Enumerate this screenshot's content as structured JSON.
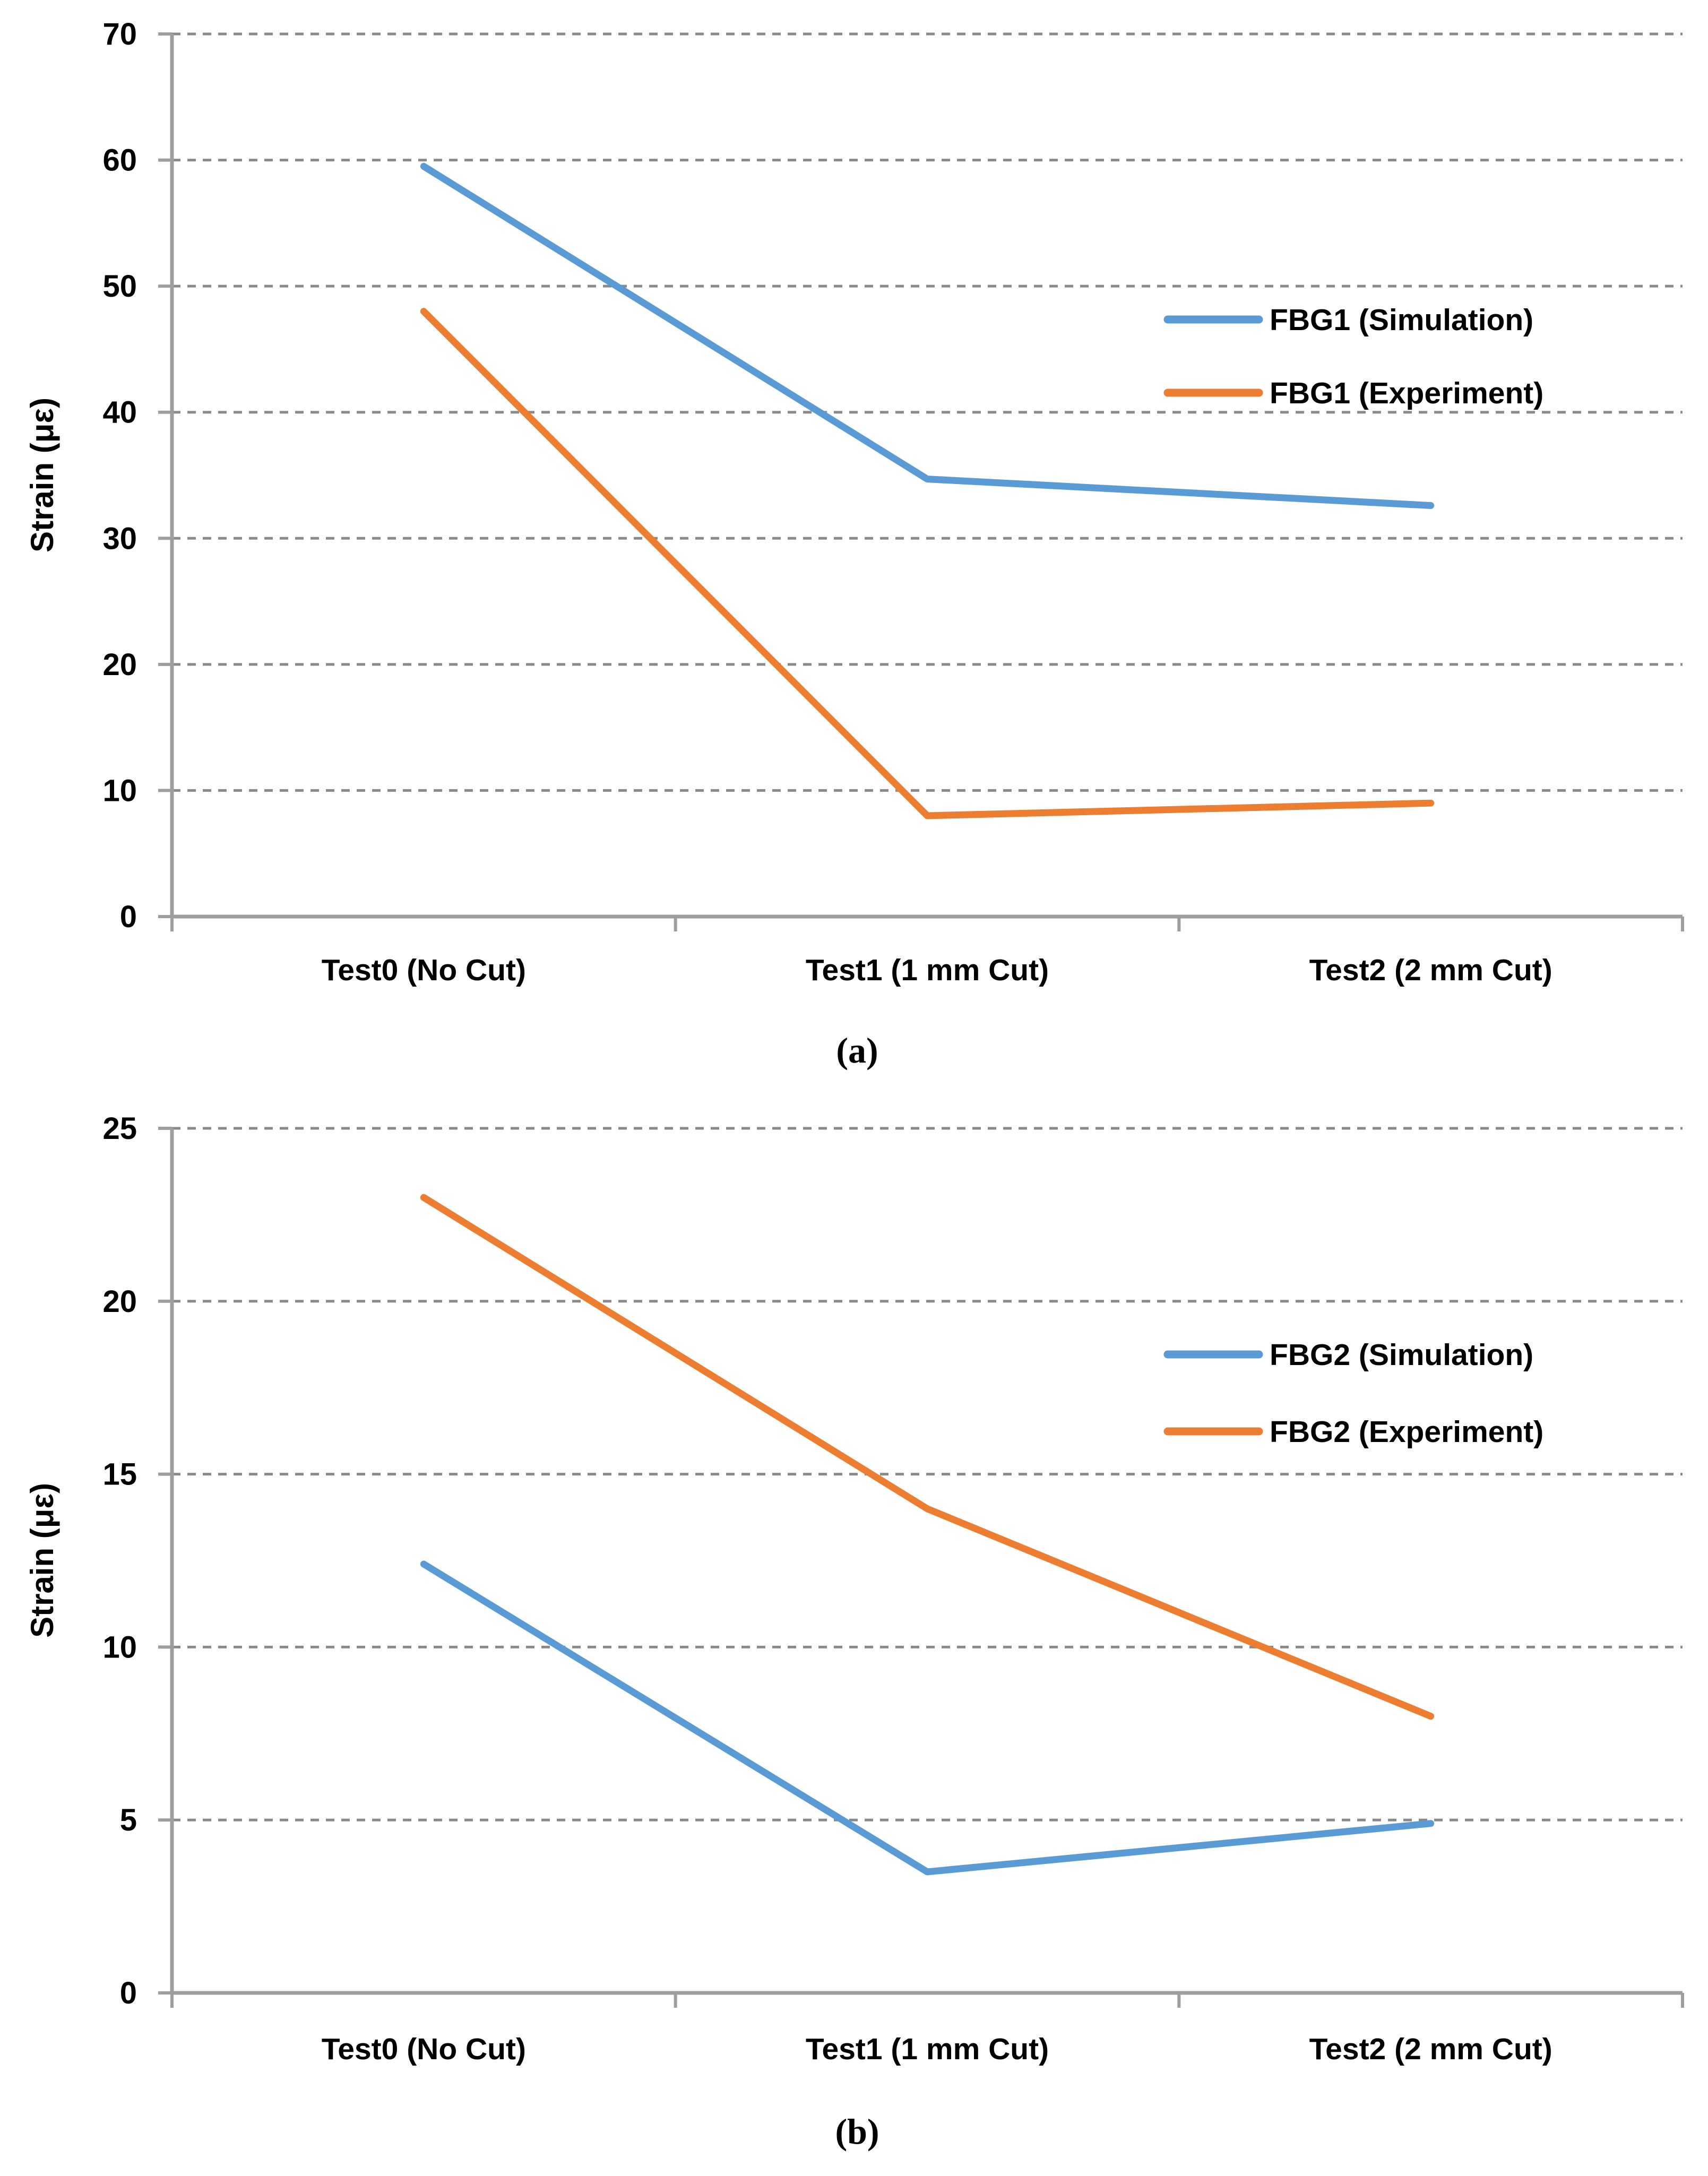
{
  "figure": {
    "background": "#ffffff",
    "panel_count": 2
  },
  "styles": {
    "gridline_color": "#8A8A8A",
    "axis_color": "#9E9E9E",
    "text_color": "#000000",
    "simulation_blue": "#5B9BD5",
    "experiment_orange": "#ED7D31"
  },
  "chart_data": [
    {
      "panel": "a",
      "type": "line",
      "caption": "(a)",
      "title": "",
      "xlabel": "",
      "ylabel": "Strain (με)",
      "categories": [
        "Test0 (No Cut)",
        "Test1 (1 mm Cut)",
        "Test2 (2 mm Cut)"
      ],
      "series": [
        {
          "name": "FBG1 (Simulation)",
          "color": "#5B9BD5",
          "values": [
            59.5,
            34.7,
            32.6
          ]
        },
        {
          "name": "FBG1 (Experiment)",
          "color": "#ED7D31",
          "values": [
            48,
            8,
            9
          ]
        }
      ],
      "ylim": [
        0,
        70
      ],
      "yticks": [
        0,
        10,
        20,
        30,
        40,
        50,
        60,
        70
      ],
      "grid": "horizontal-dashed",
      "legend_position": "inside-right"
    },
    {
      "panel": "b",
      "type": "line",
      "caption": "(b)",
      "title": "",
      "xlabel": "",
      "ylabel": "Strain (με)",
      "categories": [
        "Test0 (No Cut)",
        "Test1 (1 mm Cut)",
        "Test2 (2 mm Cut)"
      ],
      "series": [
        {
          "name": "FBG2 (Simulation)",
          "color": "#5B9BD5",
          "values": [
            12.4,
            3.5,
            4.9
          ]
        },
        {
          "name": "FBG2 (Experiment)",
          "color": "#ED7D31",
          "values": [
            23,
            14,
            8
          ]
        }
      ],
      "ylim": [
        0,
        25
      ],
      "yticks": [
        0,
        5,
        10,
        15,
        20,
        25
      ],
      "grid": "horizontal-dashed",
      "legend_position": "inside-right"
    }
  ]
}
